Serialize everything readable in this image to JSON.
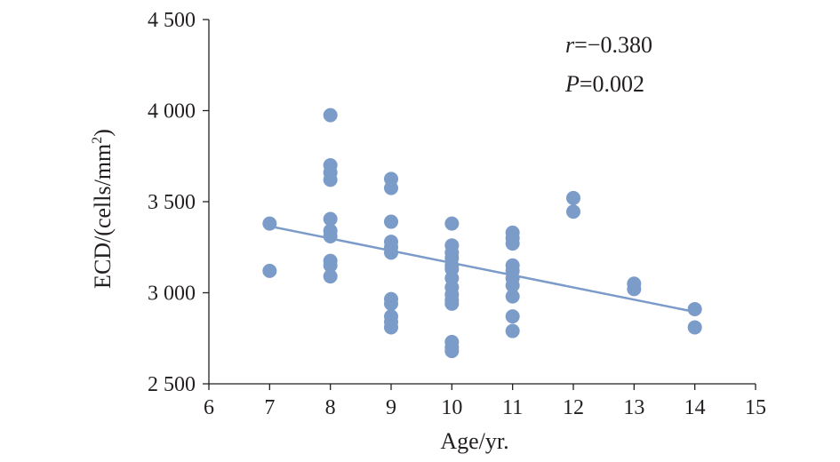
{
  "chart_data": {
    "type": "scatter",
    "title": "",
    "xlabel": "Age/yr.",
    "ylabel_main": "ECD/(cells/mm",
    "ylabel_sup": "2",
    "ylabel_close": ")",
    "xlim": [
      6,
      15
    ],
    "ylim": [
      2500,
      4500
    ],
    "x_ticks": [
      6,
      7,
      8,
      9,
      10,
      11,
      12,
      13,
      14,
      15
    ],
    "x_tick_labels": [
      "6",
      "7",
      "8",
      "9",
      "10",
      "11",
      "12",
      "13",
      "14",
      "15"
    ],
    "y_ticks": [
      2500,
      3000,
      3500,
      4000,
      4500
    ],
    "y_tick_labels": [
      "2 500",
      "3 000",
      "3 500",
      "4 000",
      "4 500"
    ],
    "grid": false,
    "point_color": "#7b9bc9",
    "line_color": "#7b9bc9",
    "annotations": {
      "r_symbol": "r",
      "r_value": "=−0.380",
      "p_symbol": "P",
      "p_value": "=0.002"
    },
    "points": [
      {
        "x": 7,
        "y": 3380
      },
      {
        "x": 7,
        "y": 3120
      },
      {
        "x": 8,
        "y": 3975
      },
      {
        "x": 8,
        "y": 3700
      },
      {
        "x": 8,
        "y": 3660
      },
      {
        "x": 8,
        "y": 3620
      },
      {
        "x": 8,
        "y": 3405
      },
      {
        "x": 8,
        "y": 3340
      },
      {
        "x": 8,
        "y": 3310
      },
      {
        "x": 8,
        "y": 3175
      },
      {
        "x": 8,
        "y": 3150
      },
      {
        "x": 8,
        "y": 3090
      },
      {
        "x": 9,
        "y": 3625
      },
      {
        "x": 9,
        "y": 3575
      },
      {
        "x": 9,
        "y": 3390
      },
      {
        "x": 9,
        "y": 3280
      },
      {
        "x": 9,
        "y": 3250
      },
      {
        "x": 9,
        "y": 3220
      },
      {
        "x": 9,
        "y": 2965
      },
      {
        "x": 9,
        "y": 2940
      },
      {
        "x": 9,
        "y": 2870
      },
      {
        "x": 9,
        "y": 2840
      },
      {
        "x": 9,
        "y": 2810
      },
      {
        "x": 10,
        "y": 3380
      },
      {
        "x": 10,
        "y": 3260
      },
      {
        "x": 10,
        "y": 3220
      },
      {
        "x": 10,
        "y": 3190
      },
      {
        "x": 10,
        "y": 3150
      },
      {
        "x": 10,
        "y": 3130
      },
      {
        "x": 10,
        "y": 3080
      },
      {
        "x": 10,
        "y": 3030
      },
      {
        "x": 10,
        "y": 2990
      },
      {
        "x": 10,
        "y": 2960
      },
      {
        "x": 10,
        "y": 2940
      },
      {
        "x": 10,
        "y": 2730
      },
      {
        "x": 10,
        "y": 2700
      },
      {
        "x": 10,
        "y": 2680
      },
      {
        "x": 11,
        "y": 3330
      },
      {
        "x": 11,
        "y": 3300
      },
      {
        "x": 11,
        "y": 3270
      },
      {
        "x": 11,
        "y": 3150
      },
      {
        "x": 11,
        "y": 3120
      },
      {
        "x": 11,
        "y": 3080
      },
      {
        "x": 11,
        "y": 3040
      },
      {
        "x": 11,
        "y": 2980
      },
      {
        "x": 11,
        "y": 2870
      },
      {
        "x": 11,
        "y": 2790
      },
      {
        "x": 12,
        "y": 3520
      },
      {
        "x": 12,
        "y": 3445
      },
      {
        "x": 13,
        "y": 3050
      },
      {
        "x": 13,
        "y": 3020
      },
      {
        "x": 14,
        "y": 2910
      },
      {
        "x": 14,
        "y": 2810
      }
    ],
    "trendline": {
      "x": [
        7,
        14
      ],
      "y": [
        3365,
        2895
      ]
    }
  }
}
